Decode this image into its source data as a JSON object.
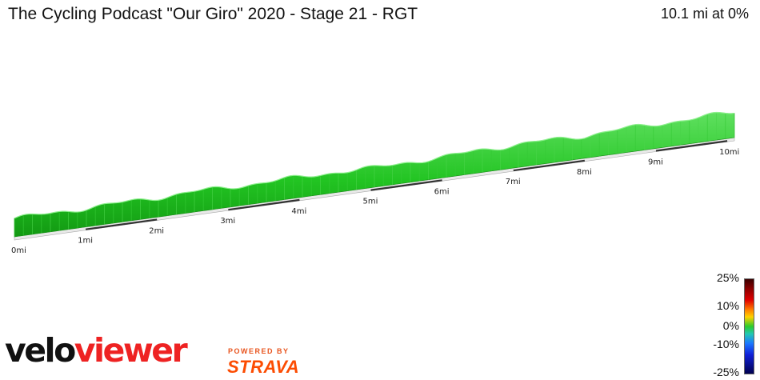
{
  "header": {
    "title": "The Cycling Podcast \"Our Giro\" 2020 - Stage 21 - RGT",
    "summary": "10.1 mi at 0%"
  },
  "chart_data": {
    "type": "area",
    "title": "The Cycling Podcast \"Our Giro\" 2020 - Stage 21 - RGT",
    "distance_unit": "mi",
    "total_distance": 10.1,
    "x_ticks": [
      "0mi",
      "1mi",
      "2mi",
      "3mi",
      "4mi",
      "5mi",
      "6mi",
      "7mi",
      "8mi",
      "9mi",
      "10mi"
    ],
    "x": [
      0,
      0.5,
      1,
      1.5,
      2,
      2.5,
      3,
      3.5,
      4,
      4.5,
      5,
      5.5,
      6,
      6.5,
      7,
      7.5,
      8,
      8.5,
      9,
      9.5,
      10,
      10.1
    ],
    "relative_elevation": [
      0.3,
      0.2,
      0.4,
      0.5,
      0.6,
      0.9,
      0.7,
      0.8,
      0.8,
      0.9,
      0.5,
      0.9,
      0.8,
      1.6,
      1.6,
      1.7,
      1.5,
      2.0,
      2.1,
      2.2,
      2.4,
      2.5
    ],
    "color_scale": {
      "labels": [
        "25%",
        "10%",
        "0%",
        "-10%",
        "-25%"
      ],
      "colors": [
        "#3a0000",
        "#e00000",
        "#ffd200",
        "#2ccb2c",
        "#1c77ff",
        "#000050"
      ]
    }
  },
  "branding": {
    "logo_part1": "velo",
    "logo_part2": "viewer",
    "powered_by": "POWERED BY",
    "strava": "STRAVA"
  }
}
